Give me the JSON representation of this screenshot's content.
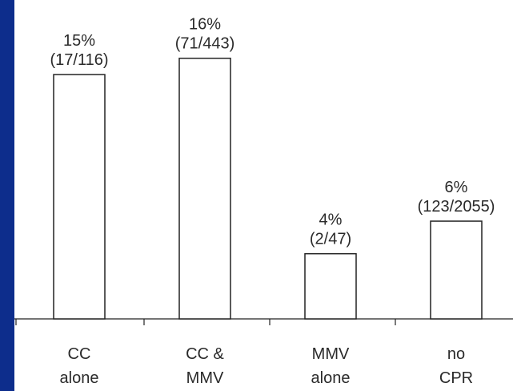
{
  "colors": {
    "background": "#0d2d8c",
    "panel": "#ffffff",
    "bar_fill": "#ffffff",
    "bar_stroke": "#222222",
    "text": "#2a2a2a"
  },
  "chart_data": {
    "type": "bar",
    "categories": [
      [
        "CC",
        "alone"
      ],
      [
        "CC &",
        "MMV"
      ],
      [
        "MMV",
        "alone"
      ],
      [
        "no",
        "CPR"
      ]
    ],
    "values": [
      15,
      16,
      4,
      6
    ],
    "data_labels": [
      [
        "15%",
        "(17/116)"
      ],
      [
        "16%",
        "(71/443)"
      ],
      [
        "4%",
        "(2/47)"
      ],
      [
        "6%",
        "(123/2055)"
      ]
    ],
    "title": "",
    "xlabel": "",
    "ylabel": "",
    "ylim": [
      0,
      18
    ],
    "grid": false,
    "legend": "none"
  }
}
